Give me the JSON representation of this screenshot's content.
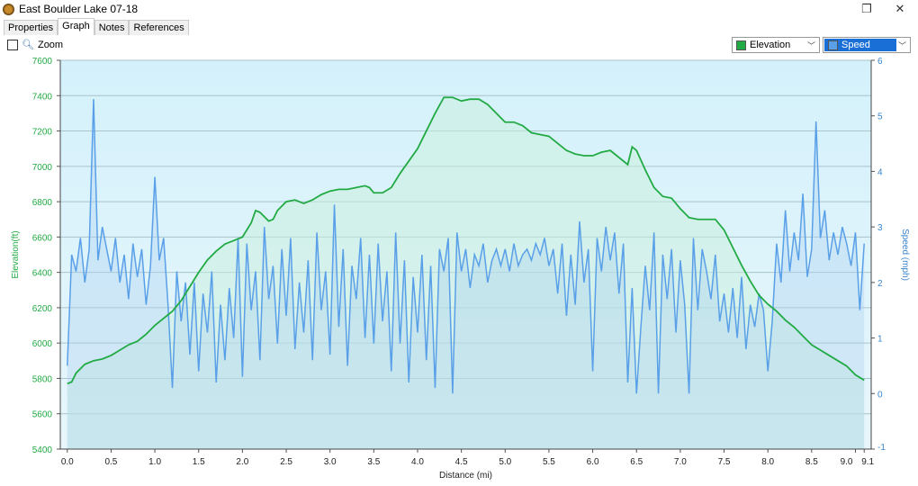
{
  "window": {
    "title": "East Boulder Lake 07-18",
    "restore_icon": "restore-icon",
    "close_icon": "close-icon"
  },
  "tabs": [
    "Properties",
    "Graph",
    "Notes",
    "References"
  ],
  "active_tab": "Graph",
  "toolbar": {
    "zoom_label": "Zoom",
    "zoom_checked": false
  },
  "selectors": {
    "left": {
      "value": "Elevation",
      "color": "#22aa44"
    },
    "right": {
      "value": "Speed",
      "color": "#5aa0e8",
      "highlighted": true
    }
  },
  "chart_data": {
    "type": "line",
    "xlabel": "Distance  (mi)",
    "ylabel": "Elevation(ft)",
    "y2label": "Speed (mph)",
    "xlim": [
      -0.08,
      9.18
    ],
    "ylim": [
      5400,
      7600
    ],
    "y2lim": [
      -1,
      6
    ],
    "xticks": [
      "0.0",
      "0.5",
      "1.0",
      "1.5",
      "2.0",
      "2.5",
      "3.0",
      "3.5",
      "4.0",
      "4.5",
      "5.0",
      "5.5",
      "6.0",
      "6.5",
      "7.0",
      "7.5",
      "8.0",
      "8.5",
      "9.0",
      "9.1"
    ],
    "yticks": [
      "5400",
      "5600",
      "5800",
      "6000",
      "6200",
      "6400",
      "6600",
      "6800",
      "7000",
      "7200",
      "7400",
      "7600"
    ],
    "y2ticks": [
      "-1",
      "0",
      "1",
      "2",
      "3",
      "4",
      "5",
      "6"
    ],
    "grid": true,
    "series": [
      {
        "name": "Elevation",
        "color": "#22aa44",
        "axis": "left",
        "x": [
          0,
          0.05,
          0.1,
          0.2,
          0.3,
          0.4,
          0.5,
          0.6,
          0.7,
          0.8,
          0.9,
          1.0,
          1.1,
          1.2,
          1.3,
          1.4,
          1.5,
          1.6,
          1.7,
          1.8,
          1.9,
          2.0,
          2.1,
          2.15,
          2.2,
          2.3,
          2.35,
          2.4,
          2.5,
          2.6,
          2.7,
          2.8,
          2.9,
          3.0,
          3.1,
          3.2,
          3.3,
          3.4,
          3.45,
          3.5,
          3.6,
          3.7,
          3.8,
          3.9,
          4.0,
          4.1,
          4.2,
          4.3,
          4.4,
          4.5,
          4.6,
          4.7,
          4.8,
          4.9,
          5.0,
          5.1,
          5.2,
          5.3,
          5.4,
          5.5,
          5.6,
          5.7,
          5.8,
          5.9,
          6.0,
          6.1,
          6.2,
          6.3,
          6.4,
          6.45,
          6.5,
          6.6,
          6.7,
          6.8,
          6.9,
          7.0,
          7.1,
          7.2,
          7.3,
          7.4,
          7.5,
          7.6,
          7.7,
          7.8,
          7.9,
          8.0,
          8.1,
          8.2,
          8.3,
          8.4,
          8.5,
          8.6,
          8.7,
          8.8,
          8.9,
          9.0,
          9.1
        ],
        "values": [
          5770,
          5780,
          5830,
          5880,
          5900,
          5910,
          5930,
          5960,
          5990,
          6010,
          6050,
          6100,
          6140,
          6180,
          6240,
          6320,
          6400,
          6470,
          6520,
          6560,
          6580,
          6600,
          6680,
          6750,
          6740,
          6690,
          6700,
          6750,
          6800,
          6810,
          6790,
          6810,
          6840,
          6860,
          6870,
          6870,
          6880,
          6890,
          6880,
          6850,
          6850,
          6880,
          6960,
          7030,
          7100,
          7200,
          7300,
          7390,
          7390,
          7370,
          7380,
          7380,
          7350,
          7300,
          7250,
          7250,
          7230,
          7190,
          7180,
          7170,
          7130,
          7090,
          7070,
          7060,
          7060,
          7080,
          7090,
          7050,
          7010,
          7110,
          7090,
          6980,
          6880,
          6830,
          6820,
          6760,
          6710,
          6700,
          6700,
          6700,
          6640,
          6540,
          6440,
          6350,
          6270,
          6220,
          6180,
          6130,
          6090,
          6040,
          5990,
          5960,
          5930,
          5900,
          5870,
          5820,
          5790
        ]
      },
      {
        "name": "Speed",
        "color": "#5aa0e8",
        "axis": "right",
        "x_step": 0.05,
        "values": [
          0.5,
          2.5,
          2.2,
          2.8,
          2.0,
          2.6,
          5.3,
          2.4,
          3.0,
          2.6,
          2.2,
          2.8,
          2.0,
          2.5,
          1.7,
          2.7,
          2.1,
          2.6,
          1.6,
          2.3,
          3.9,
          2.4,
          2.8,
          1.6,
          0.1,
          2.2,
          1.3,
          2.0,
          0.7,
          2.0,
          0.4,
          1.8,
          1.1,
          2.2,
          0.2,
          1.6,
          0.6,
          1.9,
          1.0,
          2.8,
          0.3,
          2.7,
          1.5,
          2.2,
          0.6,
          3.0,
          1.7,
          2.3,
          0.9,
          2.6,
          1.4,
          2.8,
          0.8,
          2.0,
          1.1,
          2.4,
          0.6,
          2.9,
          1.5,
          2.2,
          0.7,
          3.4,
          1.2,
          2.6,
          0.5,
          2.3,
          1.7,
          2.8,
          1.0,
          2.5,
          0.9,
          2.7,
          1.3,
          2.2,
          0.4,
          2.9,
          0.9,
          2.4,
          0.2,
          2.1,
          1.1,
          2.5,
          0.6,
          2.3,
          0.1,
          2.6,
          2.2,
          2.8,
          0.0,
          2.9,
          2.2,
          2.6,
          1.9,
          2.5,
          2.3,
          2.7,
          2.0,
          2.4,
          2.6,
          2.3,
          2.6,
          2.2,
          2.7,
          2.3,
          2.5,
          2.6,
          2.4,
          2.7,
          2.5,
          2.8,
          2.3,
          2.6,
          1.8,
          2.7,
          1.4,
          2.5,
          1.6,
          3.1,
          2.0,
          2.6,
          0.4,
          2.8,
          2.2,
          3.0,
          2.4,
          2.9,
          1.8,
          2.7,
          0.2,
          1.9,
          0.0,
          1.2,
          2.3,
          1.5,
          2.9,
          0.0,
          2.5,
          1.7,
          2.6,
          1.1,
          2.4,
          1.6,
          0.0,
          2.8,
          1.5,
          2.6,
          2.2,
          1.7,
          2.5,
          1.3,
          1.8,
          1.1,
          1.9,
          1.0,
          2.1,
          0.8,
          1.6,
          1.2,
          1.8,
          1.5,
          0.4,
          1.3,
          2.7,
          2.0,
          3.3,
          2.2,
          2.9,
          2.4,
          3.6,
          2.1,
          2.6,
          4.9,
          2.8,
          3.3,
          2.4,
          2.9,
          2.5,
          3.0,
          2.7,
          2.3,
          2.9,
          1.5,
          2.7
        ]
      }
    ]
  }
}
